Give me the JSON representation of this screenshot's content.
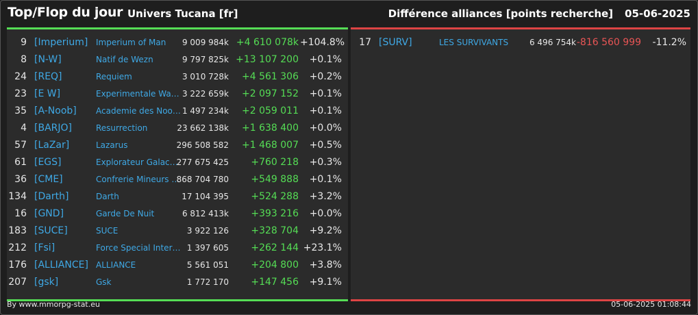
{
  "header": {
    "title": "Top/Flop du jour",
    "server": "Univers Tucana [fr]",
    "subtitle": "Différence alliances [points recherche]",
    "date": "05-06-2025"
  },
  "colors": {
    "positive": "#55dd55",
    "negative": "#e85555",
    "link": "#3fa9e6"
  },
  "top": [
    {
      "rank": "9",
      "tag": "[Imperium]",
      "name": "Imperium of Man",
      "points": "9 009 984k",
      "diff": "+4 610 078k",
      "pct": "+104.8%"
    },
    {
      "rank": "8",
      "tag": "[N-W]",
      "name": "Natif de Wezn",
      "points": "9 797 825k",
      "diff": "+13 107 200",
      "pct": "+0.1%"
    },
    {
      "rank": "24",
      "tag": "[REQ]",
      "name": "Requiem",
      "points": "3 010 728k",
      "diff": "+4 561 306",
      "pct": "+0.2%"
    },
    {
      "rank": "23",
      "tag": "[E W]",
      "name": "Experimentale Wav…",
      "points": "3 222 659k",
      "diff": "+2 097 152",
      "pct": "+0.1%"
    },
    {
      "rank": "35",
      "tag": "[A-Noob]",
      "name": "Academie des Noob…",
      "points": "1 497 234k",
      "diff": "+2 059 011",
      "pct": "+0.1%"
    },
    {
      "rank": "4",
      "tag": "[BARJO]",
      "name": "Resurrection",
      "points": "23 662 138k",
      "diff": "+1 638 400",
      "pct": "+0.0%"
    },
    {
      "rank": "57",
      "tag": "[LaZar]",
      "name": "Lazarus",
      "points": "296 508 582",
      "diff": "+1 468 007",
      "pct": "+0.5%"
    },
    {
      "rank": "61",
      "tag": "[EGS]",
      "name": "Explorateur Galacti…",
      "points": "277 675 425",
      "diff": "+760 218",
      "pct": "+0.3%"
    },
    {
      "rank": "36",
      "tag": "[CME]",
      "name": "Confrerie Mineurs …",
      "points": "868 704 780",
      "diff": "+549 888",
      "pct": "+0.1%"
    },
    {
      "rank": "134",
      "tag": "[Darth]",
      "name": "Darth",
      "points": "17 104 395",
      "diff": "+524 288",
      "pct": "+3.2%"
    },
    {
      "rank": "16",
      "tag": "[GND]",
      "name": "Garde De Nuit",
      "points": "6 812 413k",
      "diff": "+393 216",
      "pct": "+0.0%"
    },
    {
      "rank": "183",
      "tag": "[SUCE]",
      "name": "SUCE",
      "points": "3 922 126",
      "diff": "+328 704",
      "pct": "+9.2%"
    },
    {
      "rank": "212",
      "tag": "[Fsi]",
      "name": "Force Special Inter…",
      "points": "1 397 605",
      "diff": "+262 144",
      "pct": "+23.1%"
    },
    {
      "rank": "176",
      "tag": "[ALLIANCE]",
      "name": "ALLIANCE",
      "points": "5 561 051",
      "diff": "+204 800",
      "pct": "+3.8%"
    },
    {
      "rank": "207",
      "tag": "[gsk]",
      "name": "Gsk",
      "points": "1 772 170",
      "diff": "+147 456",
      "pct": "+9.1%"
    }
  ],
  "flop": [
    {
      "rank": "17",
      "tag": "[SURV]",
      "name": "LES SURVIVANTS",
      "points": "6 496 754k",
      "diff": "-816 560 999",
      "pct": "-11.2%"
    }
  ],
  "footer": {
    "credit": "By www.mmorpg-stat.eu",
    "timestamp": "05-06-2025 01:08:44"
  }
}
